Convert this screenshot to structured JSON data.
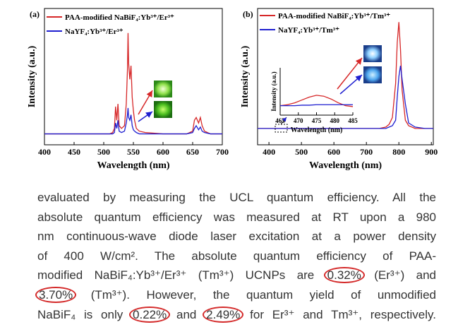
{
  "chart_data": [
    {
      "type": "line",
      "panel_label": "(a)",
      "xlabel": "Wavelength (nm)",
      "ylabel": "Intensity (a.u.)",
      "xlim": [
        400,
        700
      ],
      "xticks": [
        400,
        450,
        500,
        550,
        600,
        650,
        700
      ],
      "ylim": [
        0,
        100
      ],
      "x": [
        400,
        450,
        500,
        510,
        515,
        518,
        520,
        522,
        524,
        526,
        530,
        535,
        538,
        540,
        541,
        542,
        544,
        546,
        548,
        550,
        552,
        555,
        560,
        570,
        600,
        640,
        650,
        653,
        656,
        660,
        663,
        666,
        670,
        680,
        700
      ],
      "series": [
        {
          "name": "PAA-modified NaBiF₄:Yb³⁺/Er³⁺",
          "color": "#d62728",
          "values": [
            8,
            8,
            8,
            8,
            9,
            12,
            28,
            18,
            30,
            14,
            12,
            14,
            30,
            55,
            82,
            60,
            48,
            58,
            35,
            25,
            18,
            12,
            10,
            9,
            8,
            8,
            10,
            18,
            20,
            16,
            20,
            14,
            10,
            8,
            8
          ]
        },
        {
          "name": "NaYF₄:Yb³⁺/Er³⁺",
          "color": "#1f1fd0",
          "values": [
            8,
            8,
            8,
            8,
            8,
            9,
            16,
            12,
            18,
            10,
            9,
            10,
            16,
            22,
            27,
            20,
            18,
            22,
            14,
            11,
            10,
            9,
            8,
            8,
            8,
            8,
            9,
            12,
            14,
            11,
            13,
            10,
            9,
            8,
            8
          ]
        }
      ]
    },
    {
      "type": "line",
      "panel_label": "(b)",
      "xlabel": "Wavelength (nm)",
      "ylabel": "Intensity (a.u.)",
      "xlim": [
        365,
        906
      ],
      "xticks": [
        400,
        500,
        600,
        700,
        800,
        900
      ],
      "ylim": [
        0,
        100
      ],
      "x": [
        365,
        400,
        450,
        500,
        550,
        600,
        650,
        700,
        720,
        740,
        760,
        770,
        780,
        790,
        795,
        800,
        805,
        810,
        820,
        830,
        850,
        880,
        906
      ],
      "series": [
        {
          "name": "PAA-modified NaBiF₄:Yb³⁺/Tm³⁺",
          "color": "#d62728",
          "values": [
            12,
            12,
            12,
            12,
            12,
            12,
            12,
            12,
            12,
            12,
            13,
            15,
            20,
            45,
            75,
            90,
            70,
            40,
            18,
            14,
            12,
            12,
            12
          ]
        },
        {
          "name": "NaYF₄:Yb³⁺/Tm³⁺",
          "color": "#1f1fd0",
          "values": [
            12,
            12,
            12,
            12,
            12,
            12,
            12,
            12,
            12,
            12,
            12,
            13,
            14,
            18,
            35,
            50,
            58,
            48,
            30,
            16,
            13,
            12,
            12
          ]
        }
      ]
    },
    {
      "type": "line",
      "xlabel": "Wavelength (nm)",
      "ylabel": "Intensity (a.u.)",
      "xlim": [
        465,
        485
      ],
      "xticks": [
        465,
        470,
        475,
        480,
        485
      ],
      "ylim": [
        0,
        100
      ],
      "x": [
        465,
        467,
        469,
        471,
        473,
        475,
        477,
        479,
        481,
        483,
        485
      ],
      "series": [
        {
          "color": "#d62728",
          "values": [
            20,
            22,
            26,
            32,
            38,
            42,
            40,
            34,
            26,
            20,
            18
          ]
        },
        {
          "color": "#1f1fd0",
          "values": [
            20,
            20,
            20,
            21,
            21,
            22,
            22,
            22,
            22,
            22,
            22
          ]
        }
      ]
    }
  ],
  "document": {
    "lines": [
      [
        "evaluated by measuring the UCL quantum efficiency. All the"
      ],
      [
        "absolute quantum efficiency was measured at RT upon a 980"
      ],
      [
        "nm continuous-wave diode laser excitation at a power density"
      ],
      [
        "of 400 W/cm². The absolute quantum efficiency of PAA-"
      ],
      [
        "modified NaBiF₄:Yb³⁺/Er³⁺ (Tm³⁺) UCNPs are ",
        {
          "text": "0.32%",
          "circled": true
        },
        " (Er³⁺) and"
      ],
      [
        {
          "text": "3.70%",
          "circled": true
        },
        " (Tm³⁺). However, the quantum yield of unmodified"
      ],
      [
        "NaBiF₄ is only ",
        {
          "text": "0.22%",
          "circled": true
        },
        " and ",
        {
          "text": "2.49%",
          "circled": true
        },
        " for Er³⁺ and Tm³⁺, respectively."
      ]
    ]
  }
}
